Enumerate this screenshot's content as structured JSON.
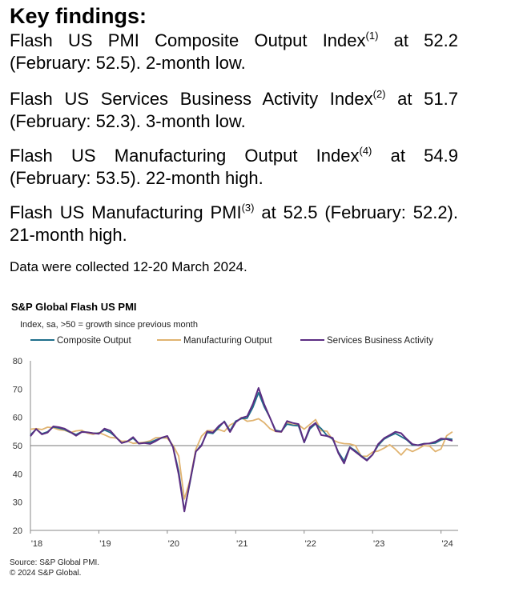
{
  "heading": "Key findings:",
  "findings": [
    {
      "pre": "Flash US PMI Composite Output Index",
      "sup": "(1)",
      "post": " at 52.2 (February: 52.5). 2-month low."
    },
    {
      "pre": "Flash US Services Business Activity Index",
      "sup": "(2)",
      "post": " at 51.7 (February: 52.3). 3-month low."
    },
    {
      "pre": "Flash US Manufacturing Output Index",
      "sup": "(4)",
      "post": " at 54.9 (February: 53.5). 22-month high."
    },
    {
      "pre": "Flash US Manufacturing PMI",
      "sup": "(3)",
      "post": " at 52.5 (February: 52.2). 21-month high."
    }
  ],
  "collected_note": "Data were collected 12-20 March 2024.",
  "chart": {
    "title": "S&P Global Flash US PMI",
    "subtitle": "Index, sa, >50 = growth since previous month",
    "source_line1": "Source: S&P Global PMI.",
    "source_line2": "© 2024 S&P Global."
  },
  "chart_data": {
    "type": "line",
    "title": "S&P Global Flash US PMI",
    "subtitle": "Index, sa, >50 = growth since previous month",
    "xlabel": "",
    "ylabel": "",
    "ylim": [
      20,
      80
    ],
    "yticks": [
      20,
      30,
      40,
      50,
      60,
      70,
      80
    ],
    "xticks": [
      {
        "label": "'18",
        "value": 2018.0
      },
      {
        "label": "'19",
        "value": 2019.0
      },
      {
        "label": "'20",
        "value": 2020.0
      },
      {
        "label": "'21",
        "value": 2021.0
      },
      {
        "label": "'22",
        "value": 2022.0
      },
      {
        "label": "'23",
        "value": 2023.0
      },
      {
        "label": "'24",
        "value": 2024.0
      }
    ],
    "xlim": [
      2018.0,
      2024.25
    ],
    "reference_line": 50,
    "legend_position": "top",
    "x": [
      2018.0,
      2018.083,
      2018.167,
      2018.25,
      2018.333,
      2018.417,
      2018.5,
      2018.583,
      2018.667,
      2018.75,
      2018.833,
      2018.917,
      2019.0,
      2019.083,
      2019.167,
      2019.25,
      2019.333,
      2019.417,
      2019.5,
      2019.583,
      2019.667,
      2019.75,
      2019.833,
      2019.917,
      2020.0,
      2020.083,
      2020.167,
      2020.25,
      2020.333,
      2020.417,
      2020.5,
      2020.583,
      2020.667,
      2020.75,
      2020.833,
      2020.917,
      2021.0,
      2021.083,
      2021.167,
      2021.25,
      2021.333,
      2021.417,
      2021.5,
      2021.583,
      2021.667,
      2021.75,
      2021.833,
      2021.917,
      2022.0,
      2022.083,
      2022.167,
      2022.25,
      2022.333,
      2022.417,
      2022.5,
      2022.583,
      2022.667,
      2022.75,
      2022.833,
      2022.917,
      2023.0,
      2023.083,
      2023.167,
      2023.25,
      2023.333,
      2023.417,
      2023.5,
      2023.583,
      2023.667,
      2023.75,
      2023.833,
      2023.917,
      2024.0,
      2024.083,
      2024.167
    ],
    "series": [
      {
        "name": "Composite Output",
        "color": "#1f6f8b",
        "values": [
          53.8,
          55.8,
          54.2,
          54.9,
          56.6,
          56.2,
          55.7,
          54.7,
          53.9,
          54.9,
          54.7,
          54.4,
          54.4,
          55.5,
          54.6,
          53.0,
          50.9,
          51.5,
          52.6,
          50.7,
          51.0,
          51.2,
          52.0,
          52.7,
          53.3,
          49.6,
          40.9,
          27.0,
          37.0,
          47.9,
          50.3,
          54.6,
          54.3,
          56.3,
          58.6,
          55.3,
          58.7,
          59.5,
          59.7,
          63.5,
          68.7,
          63.7,
          59.9,
          55.4,
          55.0,
          57.6,
          57.2,
          57.0,
          51.1,
          55.9,
          57.7,
          56.0,
          53.6,
          52.3,
          47.7,
          44.6,
          49.5,
          48.2,
          46.4,
          45.0,
          46.8,
          50.1,
          52.3,
          53.4,
          54.3,
          53.2,
          52.0,
          50.2,
          50.2,
          50.7,
          50.7,
          50.9,
          52.0,
          52.5,
          52.2
        ]
      },
      {
        "name": "Manufacturing Output",
        "color": "#e0b370",
        "values": [
          55.8,
          56.0,
          55.7,
          56.5,
          56.3,
          55.6,
          55.4,
          54.6,
          55.2,
          55.4,
          54.4,
          54.0,
          54.6,
          53.8,
          52.9,
          52.7,
          51.5,
          51.6,
          50.8,
          51.0,
          51.2,
          51.7,
          52.8,
          52.8,
          52.6,
          50.1,
          46.3,
          31.1,
          37.9,
          48.7,
          53.3,
          55.3,
          55.3,
          55.7,
          55.0,
          57.3,
          58.3,
          59.9,
          58.6,
          58.9,
          59.5,
          58.1,
          56.0,
          55.0,
          54.8,
          58.3,
          57.3,
          57.4,
          55.8,
          57.5,
          59.2,
          55.3,
          55.1,
          52.0,
          51.1,
          50.7,
          50.6,
          50.0,
          46.3,
          46.2,
          47.7,
          48.1,
          49.1,
          50.3,
          48.7,
          46.7,
          48.9,
          47.9,
          48.9,
          50.0,
          49.8,
          47.9,
          48.8,
          53.5,
          54.9
        ]
      },
      {
        "name": "Services Business Activity",
        "color": "#5c2d82",
        "values": [
          53.3,
          55.9,
          54.0,
          54.6,
          56.8,
          56.5,
          56.0,
          54.8,
          53.5,
          54.8,
          54.7,
          54.4,
          54.2,
          56.0,
          55.3,
          53.0,
          50.9,
          51.5,
          53.0,
          50.7,
          50.9,
          50.6,
          51.6,
          52.8,
          53.4,
          49.4,
          39.8,
          26.7,
          37.5,
          47.9,
          50.0,
          55.0,
          54.6,
          56.9,
          58.4,
          54.8,
          58.3,
          59.8,
          60.4,
          64.7,
          70.4,
          64.6,
          59.9,
          55.1,
          54.9,
          58.7,
          58.0,
          57.6,
          51.2,
          56.5,
          58.0,
          53.7,
          53.4,
          52.7,
          47.3,
          43.7,
          49.3,
          47.8,
          46.2,
          44.7,
          46.8,
          50.6,
          52.6,
          53.7,
          54.9,
          54.4,
          52.3,
          50.5,
          50.1,
          50.6,
          50.8,
          51.4,
          52.5,
          52.3,
          51.7
        ]
      }
    ]
  }
}
